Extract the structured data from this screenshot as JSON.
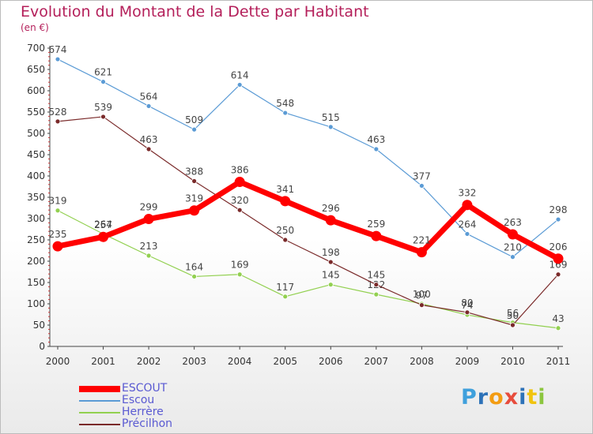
{
  "title": "Evolution du Montant de la Dette par Habitant",
  "subtitle": "(en €)",
  "logo": {
    "letters": [
      "P",
      "r",
      "o",
      "x",
      "i",
      "t",
      "i"
    ],
    "colors": [
      "#3fa0dc",
      "#2d72b8",
      "#f39c12",
      "#e74c3c",
      "#2d72b8",
      "#f1c40f",
      "#8cc63f"
    ]
  },
  "chart_data": {
    "type": "line",
    "title": "Evolution du Montant de la Dette par Habitant",
    "ylabel": "(en €)",
    "xlabel": "",
    "x": [
      "2000",
      "2001",
      "2002",
      "2003",
      "2004",
      "2005",
      "2006",
      "2007",
      "2008",
      "2009",
      "2010",
      "2011"
    ],
    "ylim": [
      0,
      700
    ],
    "yticks": [
      0,
      50,
      100,
      150,
      200,
      250,
      300,
      350,
      400,
      450,
      500,
      550,
      600,
      650,
      700
    ],
    "grid": false,
    "legend_position": "bottom-left",
    "series": [
      {
        "name": "ESCOUT",
        "color": "#ff0000",
        "values": [
          235,
          257,
          299,
          319,
          386,
          341,
          296,
          259,
          221,
          332,
          263,
          206
        ]
      },
      {
        "name": "Escou",
        "color": "#5b9bd5",
        "values": [
          674,
          621,
          564,
          509,
          614,
          548,
          515,
          463,
          377,
          264,
          210,
          298
        ]
      },
      {
        "name": "Herrère",
        "color": "#92d050",
        "values": [
          319,
          264,
          213,
          164,
          169,
          117,
          145,
          122,
          100,
          74,
          56,
          43
        ]
      },
      {
        "name": "Précilhon",
        "color": "#7a2a2a",
        "values": [
          528,
          539,
          463,
          388,
          320,
          250,
          198,
          145,
          97,
          80,
          50,
          169
        ]
      }
    ]
  }
}
